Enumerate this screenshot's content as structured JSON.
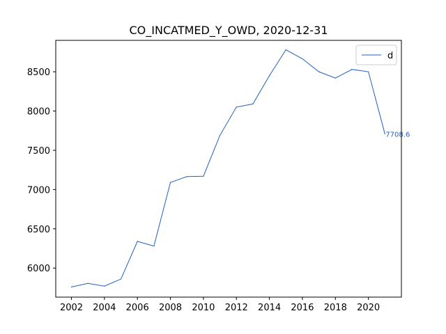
{
  "chart_data": {
    "type": "line",
    "title": "CO_INCATMED_Y_OWD, 2020-12-31",
    "xlabel": "",
    "ylabel": "",
    "xlim": [
      2001.05,
      2022.0
    ],
    "ylim": [
      5630,
      8900
    ],
    "x_ticks": [
      2002,
      2004,
      2006,
      2008,
      2010,
      2012,
      2014,
      2016,
      2018,
      2020
    ],
    "y_ticks": [
      6000,
      6500,
      7000,
      7500,
      8000,
      8500
    ],
    "grid": false,
    "legend_position": "top-right",
    "series": [
      {
        "name": "d",
        "color": "#1f5fbf",
        "x": [
          2002,
          2003,
          2004,
          2005,
          2006,
          2007,
          2008,
          2009,
          2010,
          2011,
          2012,
          2013,
          2014,
          2015,
          2016,
          2017,
          2018,
          2019,
          2020,
          2021
        ],
        "values": [
          5760,
          5805,
          5770,
          5860,
          6340,
          6280,
          7090,
          7165,
          7170,
          7690,
          8050,
          8090,
          8450,
          8780,
          8665,
          8500,
          8420,
          8530,
          8500,
          7708.6
        ]
      }
    ],
    "annotations": [
      {
        "text": "7708.6",
        "x": 2021,
        "y": 7708.6
      }
    ]
  }
}
